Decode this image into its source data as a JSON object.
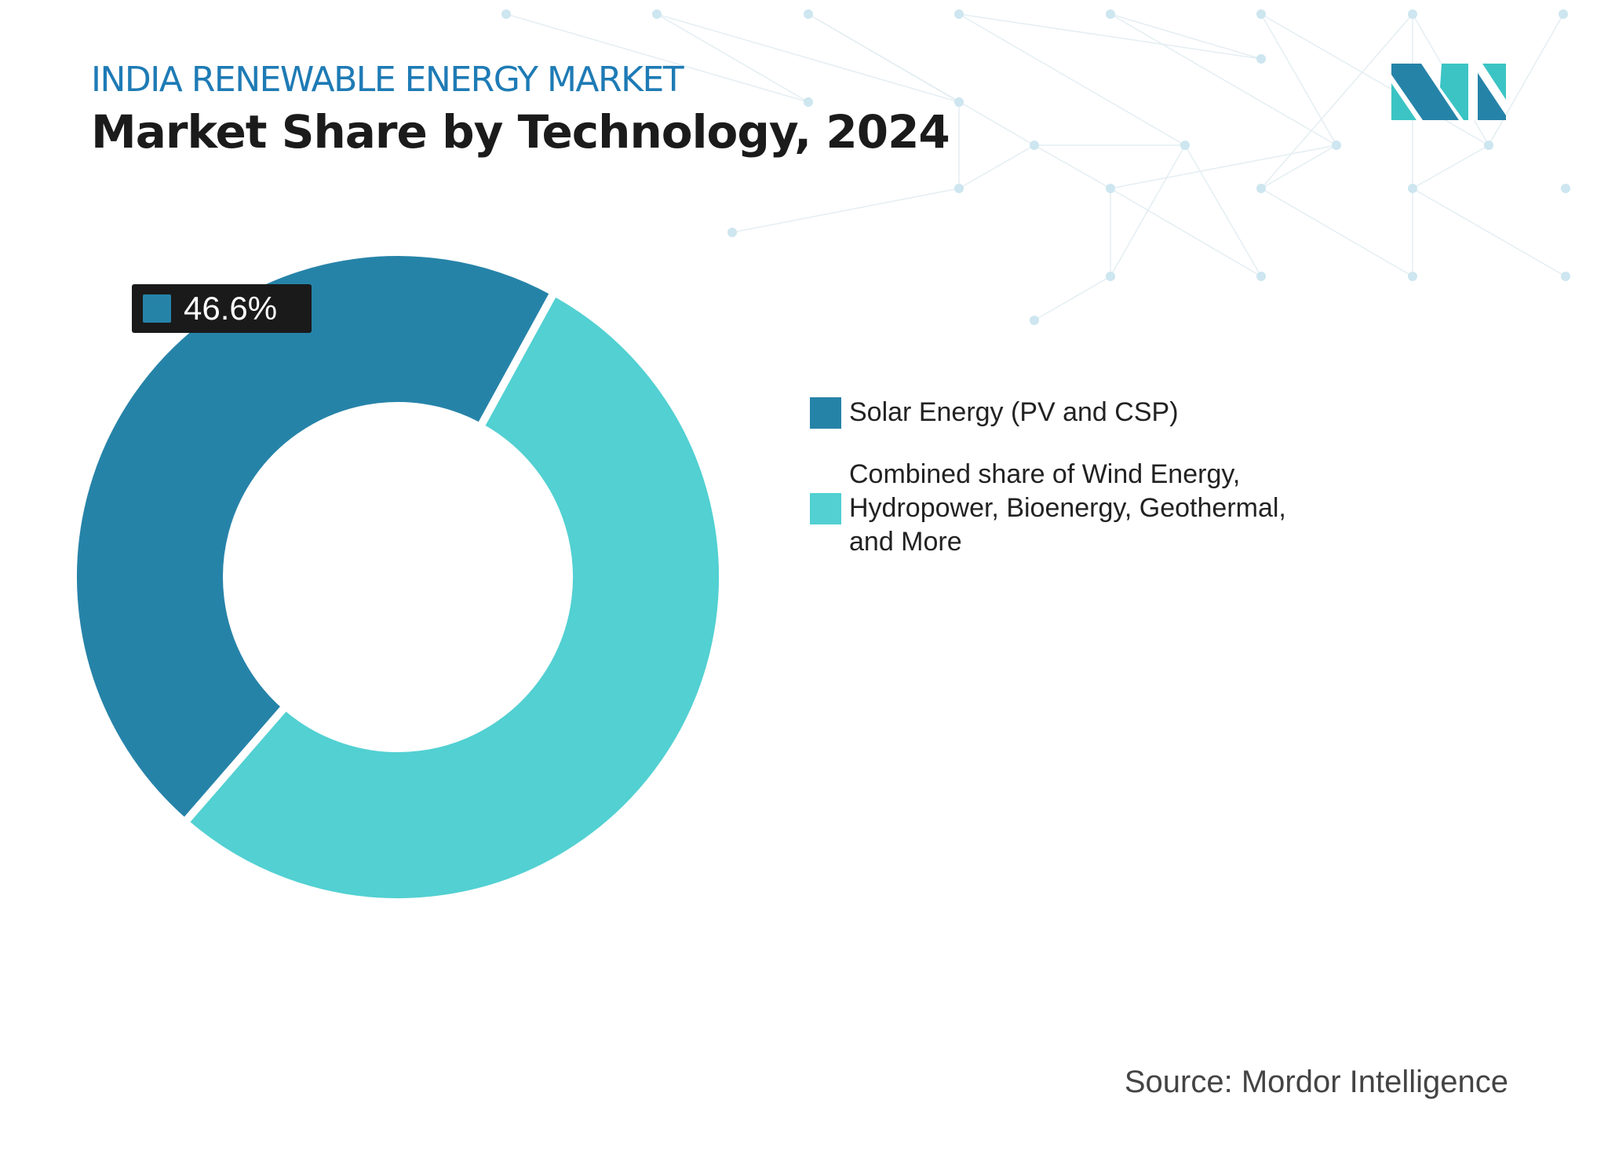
{
  "header": {
    "subtitle": "INDIA RENEWABLE ENERGY MARKET",
    "title": "Market Share by Technology, 2024"
  },
  "colors": {
    "accent": "#1e7bb5",
    "solar": "#2683a8",
    "other": "#52d0d2",
    "tag_bg": "#1a1a1a"
  },
  "logo": {
    "text": "MI"
  },
  "chart_data": {
    "type": "pie",
    "variant": "donut",
    "categories": [
      "Solar Energy (PV and CSP)",
      "Combined share of Wind Energy, Hydropower, Bioenergy, Geothermal, and More"
    ],
    "values": [
      46.6,
      53.4
    ],
    "data_labels": [
      "46.6%"
    ],
    "title": "Market Share by Technology, 2024",
    "legend_position": "right"
  },
  "legend": {
    "items": [
      {
        "label": "Solar Energy (PV and CSP)",
        "color": "#2683a8"
      },
      {
        "label": "Combined share of Wind Energy, Hydropower, Bioenergy, Geothermal, and More",
        "color": "#52d0d2"
      }
    ]
  },
  "source": "Source: Mordor Intelligence"
}
